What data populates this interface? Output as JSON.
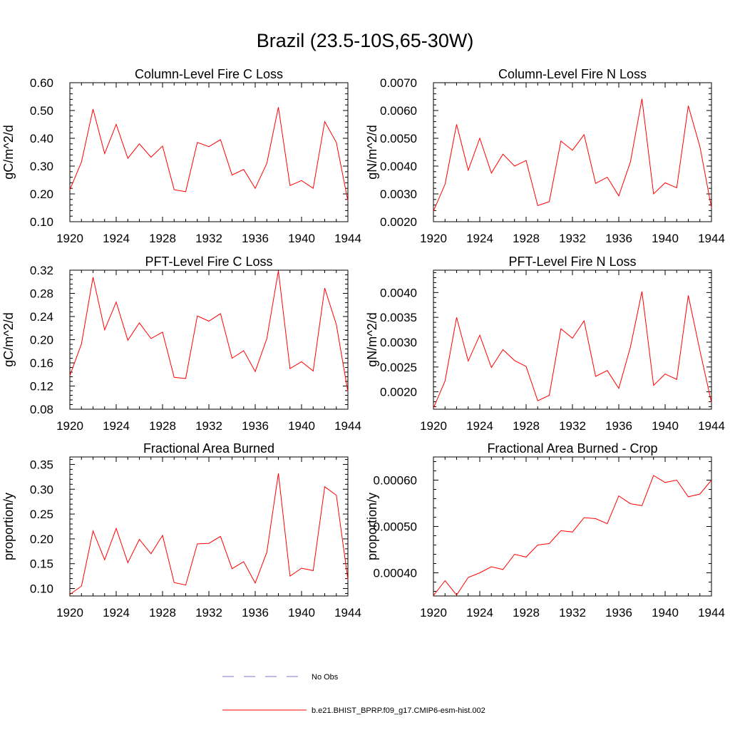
{
  "page_title": "Brazil (23.5-10S,65-30W)",
  "colors": {
    "series": "#ff0000",
    "obs": "#7777cc",
    "axis": "#000000"
  },
  "legend": {
    "obs_label": "No Obs",
    "model_label": "b.e21.BHIST_BPRP.f09_g17.CMIP6-esm-hist.002"
  },
  "chart_data": [
    {
      "type": "line",
      "title": "Column-Level Fire C Loss",
      "ylabel": "gC/m^2/d",
      "xlim": [
        1920,
        1944
      ],
      "ylim": [
        0.1,
        0.6
      ],
      "xticks": [
        "1920",
        "1924",
        "1928",
        "1932",
        "1936",
        "1940",
        "1944"
      ],
      "yticks": [
        "0.10",
        "0.20",
        "0.30",
        "0.40",
        "0.50",
        "0.60"
      ],
      "x": [
        1920,
        1921,
        1922,
        1923,
        1924,
        1925,
        1926,
        1927,
        1928,
        1929,
        1930,
        1931,
        1932,
        1933,
        1934,
        1935,
        1936,
        1937,
        1938,
        1939,
        1940,
        1941,
        1942,
        1943,
        1944
      ],
      "series": [
        {
          "values": [
            0.215,
            0.315,
            0.505,
            0.345,
            0.45,
            0.328,
            0.38,
            0.332,
            0.372,
            0.215,
            0.208,
            0.385,
            0.37,
            0.395,
            0.268,
            0.288,
            0.22,
            0.31,
            0.512,
            0.23,
            0.248,
            0.22,
            0.46,
            0.385,
            0.175
          ]
        }
      ]
    },
    {
      "type": "line",
      "title": "Column-Level Fire N Loss",
      "ylabel": "gN/m^2/d",
      "xlim": [
        1920,
        1944
      ],
      "ylim": [
        0.002,
        0.007
      ],
      "xticks": [
        "1920",
        "1924",
        "1928",
        "1932",
        "1936",
        "1940",
        "1944"
      ],
      "yticks": [
        "0.0020",
        "0.0030",
        "0.0040",
        "0.0050",
        "0.0060",
        "0.0070"
      ],
      "x": [
        1920,
        1921,
        1922,
        1923,
        1924,
        1925,
        1926,
        1927,
        1928,
        1929,
        1930,
        1931,
        1932,
        1933,
        1934,
        1935,
        1936,
        1937,
        1938,
        1939,
        1940,
        1941,
        1942,
        1943,
        1944
      ],
      "series": [
        {
          "values": [
            0.00238,
            0.00335,
            0.0055,
            0.00385,
            0.005,
            0.00375,
            0.00443,
            0.004,
            0.0042,
            0.00258,
            0.00272,
            0.0049,
            0.00457,
            0.00513,
            0.00338,
            0.0036,
            0.00293,
            0.00415,
            0.00642,
            0.003,
            0.0034,
            0.00322,
            0.00617,
            0.0047,
            0.0025
          ]
        }
      ]
    },
    {
      "type": "line",
      "title": "PFT-Level Fire C Loss",
      "ylabel": "gC/m^2/d",
      "xlim": [
        1920,
        1944
      ],
      "ylim": [
        0.08,
        0.32
      ],
      "xticks": [
        "1920",
        "1924",
        "1928",
        "1932",
        "1936",
        "1940",
        "1944"
      ],
      "yticks": [
        "0.08",
        "0.12",
        "0.16",
        "0.20",
        "0.24",
        "0.28",
        "0.32"
      ],
      "x": [
        1920,
        1921,
        1922,
        1923,
        1924,
        1925,
        1926,
        1927,
        1928,
        1929,
        1930,
        1931,
        1932,
        1933,
        1934,
        1935,
        1936,
        1937,
        1938,
        1939,
        1940,
        1941,
        1942,
        1943,
        1944
      ],
      "series": [
        {
          "values": [
            0.138,
            0.193,
            0.308,
            0.217,
            0.265,
            0.199,
            0.229,
            0.202,
            0.213,
            0.135,
            0.133,
            0.241,
            0.232,
            0.245,
            0.168,
            0.181,
            0.145,
            0.202,
            0.319,
            0.15,
            0.162,
            0.146,
            0.289,
            0.226,
            0.11
          ]
        }
      ]
    },
    {
      "type": "line",
      "title": "PFT-Level Fire N Loss",
      "ylabel": "gN/m^2/d",
      "xlim": [
        1920,
        1944
      ],
      "ylim": [
        0.00165,
        0.00445
      ],
      "xticks": [
        "1920",
        "1924",
        "1928",
        "1932",
        "1936",
        "1940",
        "1944"
      ],
      "yticks": [
        "0.0020",
        "0.0025",
        "0.0030",
        "0.0035",
        "0.0040"
      ],
      "ytick_values": [
        0.002,
        0.0025,
        0.003,
        0.0035,
        0.004
      ],
      "x": [
        1920,
        1921,
        1922,
        1923,
        1924,
        1925,
        1926,
        1927,
        1928,
        1929,
        1930,
        1931,
        1932,
        1933,
        1934,
        1935,
        1936,
        1937,
        1938,
        1939,
        1940,
        1941,
        1942,
        1943,
        1944
      ],
      "series": [
        {
          "values": [
            0.00167,
            0.00222,
            0.0035,
            0.00262,
            0.00314,
            0.00249,
            0.00285,
            0.00263,
            0.00251,
            0.00182,
            0.00193,
            0.00327,
            0.00308,
            0.00343,
            0.00231,
            0.00243,
            0.00207,
            0.0029,
            0.00402,
            0.00213,
            0.00236,
            0.00225,
            0.00394,
            0.00283,
            0.00178
          ]
        }
      ]
    },
    {
      "type": "line",
      "title": "Fractional Area Burned",
      "ylabel": "proportion/y",
      "xlim": [
        1920,
        1944
      ],
      "ylim": [
        0.085,
        0.365
      ],
      "xticks": [
        "1920",
        "1924",
        "1928",
        "1932",
        "1936",
        "1940",
        "1944"
      ],
      "yticks": [
        "0.10",
        "0.15",
        "0.20",
        "0.25",
        "0.30",
        "0.35"
      ],
      "ytick_values": [
        0.1,
        0.15,
        0.2,
        0.25,
        0.3,
        0.35
      ],
      "x": [
        1920,
        1921,
        1922,
        1923,
        1924,
        1925,
        1926,
        1927,
        1928,
        1929,
        1930,
        1931,
        1932,
        1933,
        1934,
        1935,
        1936,
        1937,
        1938,
        1939,
        1940,
        1941,
        1942,
        1943,
        1944
      ],
      "series": [
        {
          "values": [
            0.088,
            0.105,
            0.216,
            0.158,
            0.221,
            0.152,
            0.199,
            0.17,
            0.207,
            0.112,
            0.107,
            0.19,
            0.191,
            0.205,
            0.14,
            0.154,
            0.111,
            0.173,
            0.332,
            0.125,
            0.141,
            0.136,
            0.305,
            0.288,
            0.118
          ]
        }
      ]
    },
    {
      "type": "line",
      "title": "Fractional Area Burned - Crop",
      "ylabel": "proportion/y",
      "xlim": [
        1920,
        1944
      ],
      "ylim": [
        0.00035,
        0.00065
      ],
      "xticks": [
        "1920",
        "1924",
        "1928",
        "1932",
        "1936",
        "1940",
        "1944"
      ],
      "yticks": [
        "0.00040",
        "0.00050",
        "0.00060"
      ],
      "ytick_values": [
        0.0004,
        0.0005,
        0.0006
      ],
      "x": [
        1920,
        1921,
        1922,
        1923,
        1924,
        1925,
        1926,
        1927,
        1928,
        1929,
        1930,
        1931,
        1932,
        1933,
        1934,
        1935,
        1936,
        1937,
        1938,
        1939,
        1940,
        1941,
        1942,
        1943,
        1944
      ],
      "series": [
        {
          "values": [
            0.000351,
            0.000383,
            0.000352,
            0.00039,
            0.0004,
            0.000413,
            0.000407,
            0.00044,
            0.000434,
            0.00046,
            0.000463,
            0.000491,
            0.000488,
            0.000519,
            0.000517,
            0.000506,
            0.000566,
            0.000549,
            0.000545,
            0.00061,
            0.000595,
            0.0006,
            0.000564,
            0.00057,
            0.0006
          ]
        }
      ]
    }
  ]
}
